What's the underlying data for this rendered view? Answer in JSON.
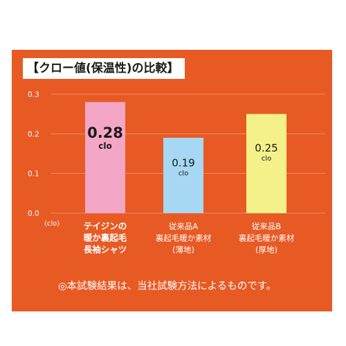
{
  "chart_data": {
    "type": "bar",
    "title": "【クロー値(保温性)の比較】",
    "ylabel": "(clo)",
    "ylim": [
      0,
      0.3
    ],
    "yticks": [
      "0.3",
      "0.2",
      "0.1",
      "0.0"
    ],
    "unit": "clo",
    "grid": true,
    "categories": [
      [
        "テイジンの",
        "暖か裏起毛",
        "長袖シャツ"
      ],
      [
        "従来品A",
        "裏起毛暖か素材",
        "(薄地)"
      ],
      [
        "従来品B",
        "裏起毛暖か素材",
        "(厚地)"
      ]
    ],
    "values": [
      0.28,
      0.19,
      0.25
    ],
    "value_labels": [
      "0.28",
      "0.19",
      "0.25"
    ],
    "bar_colors": [
      "#f4a6c6",
      "#a6d8f4",
      "#f4f08a"
    ],
    "category_bold": [
      true,
      false,
      false
    ]
  },
  "colors": {
    "background": "#e85a24",
    "text": "#ffffff",
    "grid": "#f08a60"
  },
  "footnote": "◎本試験結果は、当社試験方法によるものです。"
}
